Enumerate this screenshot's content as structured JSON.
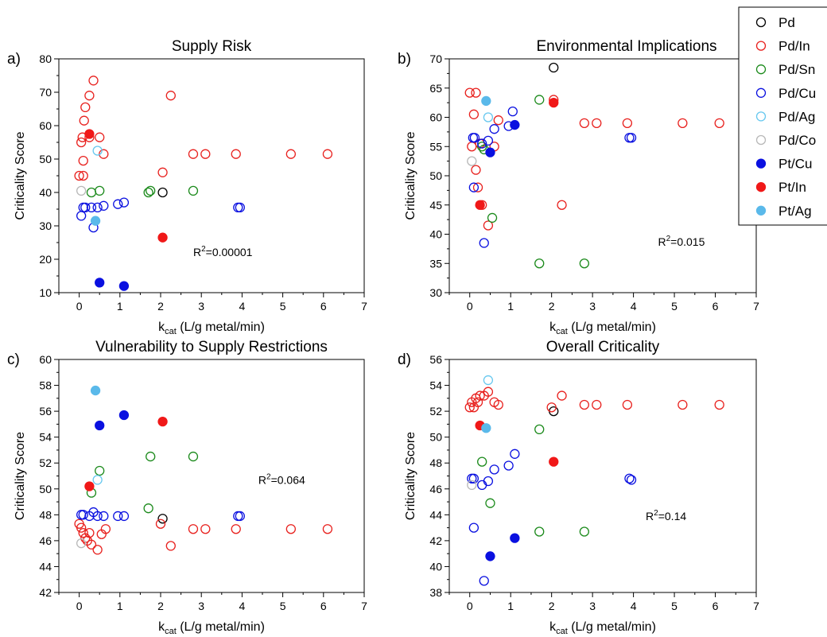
{
  "figure": {
    "legend": {
      "placement": "top-right",
      "entries": [
        {
          "label": "Pd",
          "marker": "open",
          "color": "#000000"
        },
        {
          "label": "Pd/In",
          "marker": "open",
          "color": "#e8211e"
        },
        {
          "label": "Pd/Sn",
          "marker": "open",
          "color": "#1b8a1b"
        },
        {
          "label": "Pd/Cu",
          "marker": "open",
          "color": "#0a10e0"
        },
        {
          "label": "Pd/Ag",
          "marker": "open",
          "color": "#67c8ef"
        },
        {
          "label": "Pd/Co",
          "marker": "open",
          "color": "#b8b8b8"
        },
        {
          "label": "Pt/Cu",
          "marker": "filled",
          "color": "#0a10e0"
        },
        {
          "label": "Pt/In",
          "marker": "filled",
          "color": "#f01818"
        },
        {
          "label": "Pt/Ag",
          "marker": "filled",
          "color": "#5ab9ea"
        }
      ]
    }
  },
  "chart_data": [
    {
      "type": "scatter",
      "panel_label": "a)",
      "title": "Supply Risk",
      "xlabel_main": "k",
      "xlabel_sub": "cat",
      "xlabel_rest": " (L/g metal/min)",
      "ylabel": "Criticality Score",
      "xlim": [
        -0.5,
        7
      ],
      "ylim": [
        10,
        80
      ],
      "xticks": [
        0,
        1,
        2,
        3,
        4,
        5,
        6,
        7
      ],
      "yticks": [
        10,
        20,
        30,
        40,
        50,
        60,
        70,
        80
      ],
      "annotation": {
        "base": "R",
        "sup": "2",
        "rest": "=0.00001",
        "x": 2.8,
        "y": 21
      },
      "series": [
        {
          "name": "Pd",
          "points": [
            [
              2.05,
              40
            ]
          ]
        },
        {
          "name": "Pd/In",
          "points": [
            [
              0.0,
              45
            ],
            [
              0.1,
              45
            ],
            [
              0.05,
              55
            ],
            [
              0.08,
              56.5
            ],
            [
              0.12,
              61.5
            ],
            [
              0.15,
              65.5
            ],
            [
              0.25,
              69
            ],
            [
              0.35,
              73.5
            ],
            [
              0.1,
              49.5
            ],
            [
              0.25,
              56.5
            ],
            [
              0.5,
              56.5
            ],
            [
              0.6,
              51.5
            ],
            [
              2.25,
              69
            ],
            [
              2.05,
              46
            ],
            [
              2.8,
              51.5
            ],
            [
              3.1,
              51.5
            ],
            [
              3.85,
              51.5
            ],
            [
              5.2,
              51.5
            ],
            [
              6.1,
              51.5
            ]
          ]
        },
        {
          "name": "Pd/Sn",
          "points": [
            [
              0.3,
              40
            ],
            [
              0.5,
              40.5
            ],
            [
              1.7,
              40
            ],
            [
              1.75,
              40.5
            ],
            [
              2.8,
              40.5
            ]
          ]
        },
        {
          "name": "Pd/Cu",
          "points": [
            [
              0.05,
              33
            ],
            [
              0.1,
              35.5
            ],
            [
              0.15,
              35.5
            ],
            [
              0.3,
              35.5
            ],
            [
              0.45,
              35.5
            ],
            [
              0.6,
              36
            ],
            [
              0.35,
              29.5
            ],
            [
              0.95,
              36.5
            ],
            [
              1.1,
              37
            ],
            [
              3.9,
              35.5
            ],
            [
              3.95,
              35.5
            ]
          ]
        },
        {
          "name": "Pd/Ag",
          "points": [
            [
              0.45,
              52.5
            ]
          ]
        },
        {
          "name": "Pd/Co",
          "points": [
            [
              0.05,
              40.5
            ]
          ]
        },
        {
          "name": "Pt/Cu",
          "points": [
            [
              0.5,
              13
            ],
            [
              1.1,
              12
            ]
          ]
        },
        {
          "name": "Pt/In",
          "points": [
            [
              0.25,
              57.5
            ],
            [
              2.05,
              26.5
            ]
          ]
        },
        {
          "name": "Pt/Ag",
          "points": [
            [
              0.4,
              31.5
            ]
          ]
        }
      ]
    },
    {
      "type": "scatter",
      "panel_label": "b)",
      "title": "Environmental Implications",
      "xlabel_main": "k",
      "xlabel_sub": "cat",
      "xlabel_rest": " (L/g metal/min)",
      "ylabel": "Criticality Score",
      "xlim": [
        -0.5,
        7
      ],
      "ylim": [
        30,
        70
      ],
      "xticks": [
        0,
        1,
        2,
        3,
        4,
        5,
        6,
        7
      ],
      "yticks": [
        30,
        35,
        40,
        45,
        50,
        55,
        60,
        65,
        70
      ],
      "annotation": {
        "base": "R",
        "sup": "2",
        "rest": "=0.015",
        "x": 4.6,
        "y": 38
      },
      "series": [
        {
          "name": "Pd",
          "points": [
            [
              2.05,
              68.5
            ]
          ]
        },
        {
          "name": "Pd/In",
          "points": [
            [
              0.0,
              64.2
            ],
            [
              0.15,
              64.2
            ],
            [
              0.05,
              55
            ],
            [
              0.1,
              60.5
            ],
            [
              0.15,
              51
            ],
            [
              0.2,
              48
            ],
            [
              0.25,
              55.5
            ],
            [
              0.3,
              45
            ],
            [
              0.45,
              41.5
            ],
            [
              0.6,
              55
            ],
            [
              0.7,
              59.5
            ],
            [
              2.05,
              63
            ],
            [
              2.25,
              45
            ],
            [
              2.8,
              59
            ],
            [
              3.1,
              59
            ],
            [
              3.85,
              59
            ],
            [
              5.2,
              59
            ],
            [
              6.1,
              59
            ]
          ]
        },
        {
          "name": "Pd/Sn",
          "points": [
            [
              0.3,
              55
            ],
            [
              0.35,
              54.5
            ],
            [
              0.55,
              42.8
            ],
            [
              1.7,
              63
            ],
            [
              1.7,
              35
            ],
            [
              2.8,
              35
            ]
          ]
        },
        {
          "name": "Pd/Cu",
          "points": [
            [
              0.08,
              56.5
            ],
            [
              0.12,
              56.5
            ],
            [
              0.1,
              48
            ],
            [
              0.3,
              55.5
            ],
            [
              0.45,
              56
            ],
            [
              0.35,
              38.5
            ],
            [
              0.6,
              58
            ],
            [
              0.95,
              58.5
            ],
            [
              1.05,
              61
            ],
            [
              3.9,
              56.5
            ],
            [
              3.95,
              56.5
            ]
          ]
        },
        {
          "name": "Pd/Ag",
          "points": [
            [
              0.45,
              60
            ]
          ]
        },
        {
          "name": "Pd/Co",
          "points": [
            [
              0.05,
              52.5
            ]
          ]
        },
        {
          "name": "Pt/Cu",
          "points": [
            [
              0.5,
              54
            ],
            [
              1.1,
              58.7
            ]
          ]
        },
        {
          "name": "Pt/In",
          "points": [
            [
              0.25,
              45
            ],
            [
              2.05,
              62.5
            ]
          ]
        },
        {
          "name": "Pt/Ag",
          "points": [
            [
              0.4,
              62.8
            ]
          ]
        }
      ]
    },
    {
      "type": "scatter",
      "panel_label": "c)",
      "title": "Vulnerability to Supply Restrictions",
      "xlabel_main": "k",
      "xlabel_sub": "cat",
      "xlabel_rest": " (L/g metal/min)",
      "ylabel": "Criticality Score",
      "xlim": [
        -0.5,
        7
      ],
      "ylim": [
        42,
        60
      ],
      "xticks": [
        0,
        1,
        2,
        3,
        4,
        5,
        6,
        7
      ],
      "yticks": [
        42,
        44,
        46,
        48,
        50,
        52,
        54,
        56,
        58,
        60
      ],
      "annotation": {
        "base": "R",
        "sup": "2",
        "rest": "=0.064",
        "x": 4.4,
        "y": 50.4
      },
      "series": [
        {
          "name": "Pd",
          "points": [
            [
              2.05,
              47.7
            ]
          ]
        },
        {
          "name": "Pd/In",
          "points": [
            [
              0.0,
              47.3
            ],
            [
              0.05,
              47
            ],
            [
              0.1,
              46.6
            ],
            [
              0.15,
              46.2
            ],
            [
              0.2,
              46
            ],
            [
              0.25,
              46.6
            ],
            [
              0.3,
              45.7
            ],
            [
              0.45,
              45.3
            ],
            [
              0.55,
              46.5
            ],
            [
              0.65,
              46.9
            ],
            [
              2.0,
              47.3
            ],
            [
              2.25,
              45.6
            ],
            [
              2.8,
              46.9
            ],
            [
              3.1,
              46.9
            ],
            [
              3.85,
              46.9
            ],
            [
              5.2,
              46.9
            ],
            [
              6.1,
              46.9
            ]
          ]
        },
        {
          "name": "Pd/Sn",
          "points": [
            [
              0.3,
              49.7
            ],
            [
              0.5,
              51.4
            ],
            [
              1.7,
              48.5
            ],
            [
              1.75,
              52.5
            ],
            [
              2.8,
              52.5
            ]
          ]
        },
        {
          "name": "Pd/Cu",
          "points": [
            [
              0.05,
              48
            ],
            [
              0.1,
              48
            ],
            [
              0.25,
              47.9
            ],
            [
              0.35,
              48.2
            ],
            [
              0.45,
              47.9
            ],
            [
              0.6,
              47.9
            ],
            [
              0.95,
              47.9
            ],
            [
              1.1,
              47.9
            ],
            [
              3.9,
              47.9
            ],
            [
              3.95,
              47.9
            ]
          ]
        },
        {
          "name": "Pd/Ag",
          "points": [
            [
              0.45,
              50.7
            ]
          ]
        },
        {
          "name": "Pd/Co",
          "points": [
            [
              0.05,
              45.8
            ]
          ]
        },
        {
          "name": "Pt/Cu",
          "points": [
            [
              0.5,
              54.9
            ],
            [
              1.1,
              55.7
            ]
          ]
        },
        {
          "name": "Pt/In",
          "points": [
            [
              0.25,
              50.2
            ],
            [
              2.05,
              55.2
            ]
          ]
        },
        {
          "name": "Pt/Ag",
          "points": [
            [
              0.4,
              57.6
            ]
          ]
        }
      ]
    },
    {
      "type": "scatter",
      "panel_label": "d)",
      "title": "Overall Criticality",
      "xlabel_main": "k",
      "xlabel_sub": "cat",
      "xlabel_rest": " (L/g metal/min)",
      "ylabel": "Criticality Score",
      "xlim": [
        -0.5,
        7
      ],
      "ylim": [
        38,
        56
      ],
      "xticks": [
        0,
        1,
        2,
        3,
        4,
        5,
        6,
        7
      ],
      "yticks": [
        38,
        40,
        42,
        44,
        46,
        48,
        50,
        52,
        54,
        56
      ],
      "annotation": {
        "base": "R",
        "sup": "2",
        "rest": "=0.14",
        "x": 4.3,
        "y": 43.6
      },
      "series": [
        {
          "name": "Pd",
          "points": [
            [
              2.05,
              52
            ]
          ]
        },
        {
          "name": "Pd/In",
          "points": [
            [
              0.0,
              52.3
            ],
            [
              0.05,
              52.7
            ],
            [
              0.1,
              52.3
            ],
            [
              0.15,
              53
            ],
            [
              0.2,
              52.7
            ],
            [
              0.25,
              53.2
            ],
            [
              0.35,
              53.2
            ],
            [
              0.45,
              53.5
            ],
            [
              0.6,
              52.7
            ],
            [
              0.7,
              52.5
            ],
            [
              2.0,
              52.3
            ],
            [
              2.25,
              53.2
            ],
            [
              2.8,
              52.5
            ],
            [
              3.1,
              52.5
            ],
            [
              3.85,
              52.5
            ],
            [
              5.2,
              52.5
            ],
            [
              6.1,
              52.5
            ]
          ]
        },
        {
          "name": "Pd/Sn",
          "points": [
            [
              0.3,
              48.1
            ],
            [
              0.5,
              44.9
            ],
            [
              1.7,
              50.6
            ],
            [
              1.7,
              42.7
            ],
            [
              2.8,
              42.7
            ]
          ]
        },
        {
          "name": "Pd/Cu",
          "points": [
            [
              0.05,
              46.8
            ],
            [
              0.1,
              46.8
            ],
            [
              0.1,
              43
            ],
            [
              0.3,
              46.3
            ],
            [
              0.45,
              46.6
            ],
            [
              0.35,
              38.9
            ],
            [
              0.6,
              47.5
            ],
            [
              0.95,
              47.8
            ],
            [
              1.1,
              48.7
            ],
            [
              3.9,
              46.8
            ],
            [
              3.95,
              46.7
            ]
          ]
        },
        {
          "name": "Pd/Ag",
          "points": [
            [
              0.45,
              54.4
            ]
          ]
        },
        {
          "name": "Pd/Co",
          "points": [
            [
              0.05,
              46.3
            ]
          ]
        },
        {
          "name": "Pt/Cu",
          "points": [
            [
              0.5,
              40.8
            ],
            [
              1.1,
              42.2
            ]
          ]
        },
        {
          "name": "Pt/In",
          "points": [
            [
              0.25,
              50.9
            ],
            [
              2.05,
              48.1
            ]
          ]
        },
        {
          "name": "Pt/Ag",
          "points": [
            [
              0.4,
              50.7
            ]
          ]
        }
      ]
    }
  ]
}
